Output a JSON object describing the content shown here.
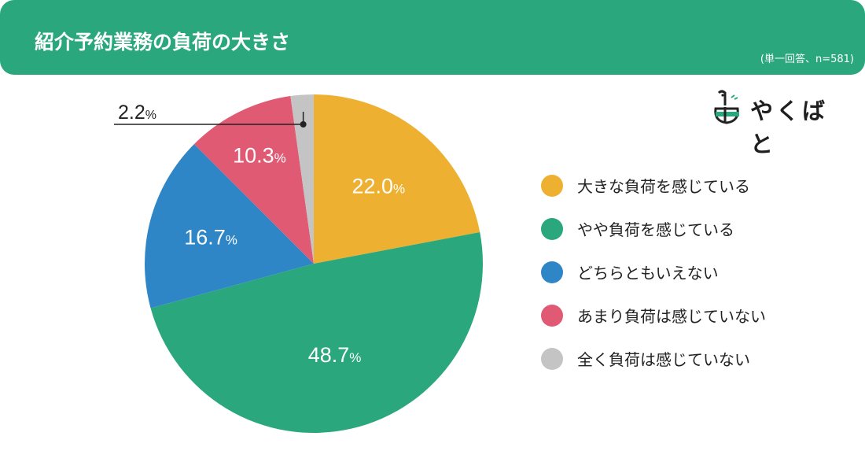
{
  "header": {
    "title": "紹介予約業務の負荷の大きさ",
    "note": "(単一回答、n=581)"
  },
  "logo": {
    "text": "やくばと",
    "icon": "bird-logo-icon"
  },
  "colors": {
    "header": "#2aa77c",
    "slices": [
      "#edb030",
      "#2aa77c",
      "#2f86c7",
      "#e05a74",
      "#c4c4c4"
    ]
  },
  "chart_data": {
    "type": "pie",
    "labels": [
      "大きな負荷を感じている",
      "やや負荷を感じている",
      "どちらともいえない",
      "あまり負荷は感じていない",
      "全く負荷は感じていない"
    ],
    "values": [
      22.0,
      48.7,
      16.7,
      10.3,
      2.2
    ],
    "value_texts": [
      "22.0",
      "48.7",
      "16.7",
      "10.3",
      "2.2"
    ],
    "unit": "%",
    "start": "12 o'clock",
    "direction": "clockwise",
    "legend_position": "right"
  }
}
